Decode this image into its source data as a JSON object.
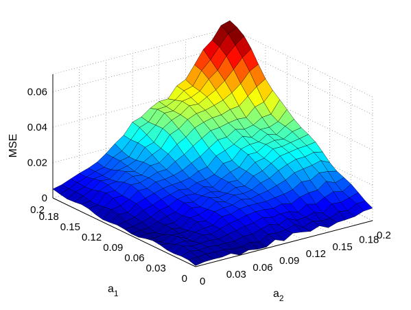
{
  "chart_data": {
    "type": "surface",
    "title": "",
    "xlabel": "a_1",
    "ylabel": "a_2",
    "zlabel": "MSE",
    "xlabel_main": "a",
    "xlabel_sub": "1",
    "ylabel_main": "a",
    "ylabel_sub": "2",
    "xlim": [
      0,
      0.2
    ],
    "ylim": [
      0,
      0.2
    ],
    "zlim": [
      0,
      0.07
    ],
    "grid": true,
    "colormap": "jet",
    "x_ticks": [
      "0",
      "0.03",
      "0.06",
      "0.09",
      "0.12",
      "0.15",
      "0.18",
      "0.2"
    ],
    "y_ticks": [
      "0",
      "0.03",
      "0.06",
      "0.09",
      "0.12",
      "0.15",
      "0.18",
      "0.2"
    ],
    "z_ticks": [
      "0",
      "0.02",
      "0.04",
      "0.06"
    ],
    "grid_points_per_axis": 21,
    "corner_values": {
      "a1_0_a2_0": 0.001,
      "a1_0.2_a2_0": 0.007,
      "a1_0_a2_0.2": 0.011,
      "a1_0.2_a2_0.2": 0.07
    },
    "notes_peak": 0.07
  }
}
